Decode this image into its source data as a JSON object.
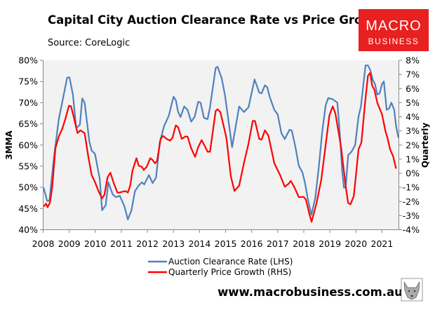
{
  "chart_data": {
    "type": "line",
    "title": "Capital City Auction Clearance Rate vs Price Growth",
    "subtitle": "Source: CoreLogic",
    "ylabel_left": "3MMA",
    "ylabel_right": "Quarterly",
    "xlim": [
      2008,
      2021.7
    ],
    "ylim_left": [
      40,
      80
    ],
    "ylim_right": [
      -4,
      8
    ],
    "x_ticks": [
      "2008",
      "2009",
      "2010",
      "2011",
      "2012",
      "2013",
      "2014",
      "2015",
      "2016",
      "2017",
      "2018",
      "2019",
      "2020",
      "2021"
    ],
    "y_ticks_left": [
      "40%",
      "45%",
      "50%",
      "55%",
      "60%",
      "65%",
      "70%",
      "75%",
      "80%"
    ],
    "y_ticks_right": [
      "-4%",
      "-3%",
      "-2%",
      "-1%",
      "0%",
      "1%",
      "2%",
      "3%",
      "4%",
      "5%",
      "6%",
      "7%",
      "8%"
    ],
    "grid": false,
    "legend_position": "bottom",
    "series": [
      {
        "name": "Auction Clearance Rate (LHS)",
        "axis": "left",
        "color": "#4f81bd",
        "points": [
          [
            2008.02,
            49.9
          ],
          [
            2008.15,
            46.8
          ],
          [
            2008.24,
            46.8
          ],
          [
            2008.42,
            57.4
          ],
          [
            2008.6,
            66.1
          ],
          [
            2008.78,
            71.6
          ],
          [
            2008.92,
            75.9
          ],
          [
            2009.01,
            76.0
          ],
          [
            2009.14,
            71.9
          ],
          [
            2009.27,
            64.0
          ],
          [
            2009.41,
            64.8
          ],
          [
            2009.5,
            71.0
          ],
          [
            2009.59,
            70.0
          ],
          [
            2009.77,
            60.9
          ],
          [
            2009.86,
            58.7
          ],
          [
            2009.99,
            57.9
          ],
          [
            2010.17,
            52.1
          ],
          [
            2010.26,
            44.6
          ],
          [
            2010.4,
            45.8
          ],
          [
            2010.5,
            51.2
          ],
          [
            2010.67,
            48.3
          ],
          [
            2010.8,
            47.7
          ],
          [
            2010.94,
            48.0
          ],
          [
            2011.12,
            45.5
          ],
          [
            2011.25,
            42.4
          ],
          [
            2011.39,
            44.6
          ],
          [
            2011.52,
            49.1
          ],
          [
            2011.66,
            50.4
          ],
          [
            2011.79,
            51.2
          ],
          [
            2011.88,
            50.7
          ],
          [
            2012.06,
            52.9
          ],
          [
            2012.2,
            51.0
          ],
          [
            2012.33,
            52.3
          ],
          [
            2012.47,
            60.6
          ],
          [
            2012.64,
            64.5
          ],
          [
            2012.82,
            66.9
          ],
          [
            2013.0,
            71.4
          ],
          [
            2013.09,
            70.6
          ],
          [
            2013.18,
            67.8
          ],
          [
            2013.27,
            66.6
          ],
          [
            2013.41,
            69.1
          ],
          [
            2013.54,
            68.3
          ],
          [
            2013.68,
            65.5
          ],
          [
            2013.81,
            66.6
          ],
          [
            2013.95,
            70.2
          ],
          [
            2014.04,
            70.0
          ],
          [
            2014.17,
            66.4
          ],
          [
            2014.31,
            66.1
          ],
          [
            2014.4,
            68.9
          ],
          [
            2014.62,
            78.2
          ],
          [
            2014.69,
            78.5
          ],
          [
            2014.85,
            75.8
          ],
          [
            2014.98,
            71.6
          ],
          [
            2015.25,
            59.5
          ],
          [
            2015.52,
            69.1
          ],
          [
            2015.7,
            67.8
          ],
          [
            2015.88,
            68.9
          ],
          [
            2016.11,
            75.5
          ],
          [
            2016.29,
            72.4
          ],
          [
            2016.38,
            72.2
          ],
          [
            2016.51,
            74.1
          ],
          [
            2016.6,
            73.6
          ],
          [
            2016.69,
            71.4
          ],
          [
            2016.87,
            68.3
          ],
          [
            2017.0,
            67.2
          ],
          [
            2017.14,
            62.8
          ],
          [
            2017.27,
            61.4
          ],
          [
            2017.45,
            63.6
          ],
          [
            2017.54,
            63.4
          ],
          [
            2017.68,
            59.5
          ],
          [
            2017.81,
            55.1
          ],
          [
            2017.95,
            53.5
          ],
          [
            2018.04,
            51.2
          ],
          [
            2018.17,
            46.8
          ],
          [
            2018.29,
            43.5
          ],
          [
            2018.44,
            47.4
          ],
          [
            2018.57,
            54.5
          ],
          [
            2018.71,
            63.4
          ],
          [
            2018.84,
            69.4
          ],
          [
            2018.94,
            71.1
          ],
          [
            2019.11,
            70.8
          ],
          [
            2019.29,
            70.0
          ],
          [
            2019.38,
            62.8
          ],
          [
            2019.47,
            54.0
          ],
          [
            2019.54,
            49.9
          ],
          [
            2019.61,
            50.1
          ],
          [
            2019.7,
            57.6
          ],
          [
            2019.83,
            58.4
          ],
          [
            2019.97,
            60.0
          ],
          [
            2020.1,
            66.7
          ],
          [
            2020.19,
            69.1
          ],
          [
            2020.37,
            78.8
          ],
          [
            2020.46,
            78.8
          ],
          [
            2020.55,
            77.7
          ],
          [
            2020.64,
            75.5
          ],
          [
            2020.73,
            74.4
          ],
          [
            2020.82,
            71.9
          ],
          [
            2020.91,
            72.2
          ],
          [
            2021.0,
            74.4
          ],
          [
            2021.07,
            75.0
          ],
          [
            2021.18,
            68.3
          ],
          [
            2021.27,
            68.6
          ],
          [
            2021.36,
            70.0
          ],
          [
            2021.47,
            68.3
          ],
          [
            2021.54,
            64.5
          ],
          [
            2021.63,
            61.7
          ]
        ]
      },
      {
        "name": "Quarterly Price Growth (RHS)",
        "axis": "right",
        "color": "#ff0000",
        "points": [
          [
            2008.02,
            -2.36
          ],
          [
            2008.11,
            -2.15
          ],
          [
            2008.17,
            -2.41
          ],
          [
            2008.26,
            -2.08
          ],
          [
            2008.35,
            -0.96
          ],
          [
            2008.47,
            1.77
          ],
          [
            2008.6,
            2.6
          ],
          [
            2008.74,
            3.18
          ],
          [
            2008.85,
            3.84
          ],
          [
            2008.99,
            4.78
          ],
          [
            2009.07,
            4.74
          ],
          [
            2009.17,
            4.0
          ],
          [
            2009.32,
            2.84
          ],
          [
            2009.43,
            3.04
          ],
          [
            2009.59,
            2.84
          ],
          [
            2009.73,
            1.19
          ],
          [
            2009.86,
            -0.13
          ],
          [
            2009.99,
            -0.63
          ],
          [
            2010.13,
            -1.29
          ],
          [
            2010.26,
            -1.78
          ],
          [
            2010.35,
            -1.53
          ],
          [
            2010.47,
            -0.29
          ],
          [
            2010.58,
            0.04
          ],
          [
            2010.71,
            -0.71
          ],
          [
            2010.85,
            -1.37
          ],
          [
            2010.94,
            -1.37
          ],
          [
            2011.07,
            -1.29
          ],
          [
            2011.16,
            -1.26
          ],
          [
            2011.25,
            -1.37
          ],
          [
            2011.34,
            -0.87
          ],
          [
            2011.43,
            0.2
          ],
          [
            2011.58,
            1.07
          ],
          [
            2011.67,
            0.53
          ],
          [
            2011.79,
            0.45
          ],
          [
            2011.86,
            0.23
          ],
          [
            2011.97,
            0.45
          ],
          [
            2012.11,
            1.07
          ],
          [
            2012.2,
            0.94
          ],
          [
            2012.29,
            0.7
          ],
          [
            2012.37,
            0.86
          ],
          [
            2012.51,
            2.43
          ],
          [
            2012.6,
            2.65
          ],
          [
            2012.74,
            2.43
          ],
          [
            2012.87,
            2.31
          ],
          [
            2012.96,
            2.51
          ],
          [
            2013.09,
            3.39
          ],
          [
            2013.18,
            3.26
          ],
          [
            2013.32,
            2.43
          ],
          [
            2013.45,
            2.6
          ],
          [
            2013.54,
            2.6
          ],
          [
            2013.68,
            1.77
          ],
          [
            2013.83,
            1.16
          ],
          [
            2013.95,
            1.85
          ],
          [
            2014.08,
            2.35
          ],
          [
            2014.22,
            1.85
          ],
          [
            2014.31,
            1.52
          ],
          [
            2014.4,
            1.52
          ],
          [
            2014.62,
            4.41
          ],
          [
            2014.69,
            4.53
          ],
          [
            2014.8,
            4.33
          ],
          [
            2015.03,
            2.51
          ],
          [
            2015.2,
            -0.22
          ],
          [
            2015.34,
            -1.26
          ],
          [
            2015.52,
            -0.87
          ],
          [
            2015.7,
            0.7
          ],
          [
            2015.88,
            2.1
          ],
          [
            2016.04,
            3.7
          ],
          [
            2016.13,
            3.7
          ],
          [
            2016.29,
            2.43
          ],
          [
            2016.38,
            2.38
          ],
          [
            2016.51,
            3.04
          ],
          [
            2016.64,
            2.68
          ],
          [
            2016.87,
            0.7
          ],
          [
            2017.09,
            -0.13
          ],
          [
            2017.27,
            -0.96
          ],
          [
            2017.41,
            -0.76
          ],
          [
            2017.5,
            -0.54
          ],
          [
            2017.63,
            -0.96
          ],
          [
            2017.81,
            -1.7
          ],
          [
            2017.99,
            -1.67
          ],
          [
            2018.08,
            -1.87
          ],
          [
            2018.22,
            -2.94
          ],
          [
            2018.3,
            -3.44
          ],
          [
            2018.49,
            -2.11
          ],
          [
            2018.67,
            -0.46
          ],
          [
            2018.84,
            2.02
          ],
          [
            2018.98,
            4.08
          ],
          [
            2019.11,
            4.74
          ],
          [
            2019.21,
            4.25
          ],
          [
            2019.34,
            2.84
          ],
          [
            2019.43,
            1.85
          ],
          [
            2019.61,
            -0.96
          ],
          [
            2019.7,
            -2.11
          ],
          [
            2019.79,
            -2.2
          ],
          [
            2019.92,
            -1.62
          ],
          [
            2020.1,
            1.69
          ],
          [
            2020.21,
            2.18
          ],
          [
            2020.35,
            4.99
          ],
          [
            2020.46,
            6.9
          ],
          [
            2020.55,
            7.11
          ],
          [
            2020.62,
            6.23
          ],
          [
            2020.71,
            5.9
          ],
          [
            2020.82,
            4.99
          ],
          [
            2021.0,
            4.17
          ],
          [
            2021.13,
            3.0
          ],
          [
            2021.22,
            2.43
          ],
          [
            2021.31,
            1.69
          ],
          [
            2021.43,
            1.19
          ],
          [
            2021.54,
            0.33
          ]
        ]
      }
    ]
  },
  "branding": {
    "logo_line1": "MACRO",
    "logo_line2": "BUSINESS",
    "logo_color": "#e8201f",
    "website": "www.macrobusiness.com.au",
    "wolf_icon": "wolf-head-icon"
  }
}
